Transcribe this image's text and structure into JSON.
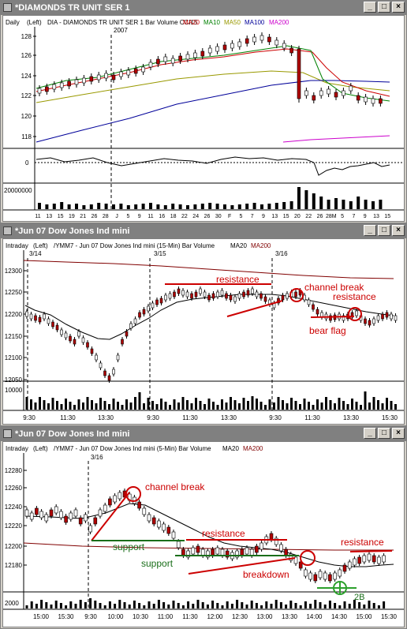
{
  "windows": [
    {
      "title": "*DIAMONDS TR UNIT SER 1",
      "interval": "Daily",
      "scale": "(Left)",
      "symbol_line": "DIA - DIAMONDS TR UNIT SER 1  Bar  Volume  CCI15",
      "indicators": [
        {
          "label": "MA20",
          "color": "#cc0000"
        },
        {
          "label": "MA10",
          "color": "#008000"
        },
        {
          "label": "MA50",
          "color": "#999900"
        },
        {
          "label": "MA100",
          "color": "#000099"
        },
        {
          "label": "MA200",
          "color": "#cc00cc"
        }
      ],
      "year_label": "2007",
      "price_ticks": [
        "128",
        "126",
        "124",
        "122",
        "120",
        "118"
      ],
      "cci_tick": "0",
      "volume_tick": "20000000",
      "date_ticks": [
        "11",
        "13",
        "15",
        "19",
        "21",
        "26",
        "28",
        "J",
        "5",
        "9",
        "11",
        "16",
        "18",
        "22",
        "24",
        "26",
        "30",
        "F",
        "5",
        "7",
        "9",
        "13",
        "15",
        "20",
        "22",
        "26",
        "28M",
        "5",
        "7",
        "9",
        "13",
        "15"
      ]
    },
    {
      "title": "*Jun 07  Dow Jones Ind mini",
      "interval": "Intraday",
      "scale": "(Left)",
      "symbol_line": "/YMM7 - Jun 07  Dow Jones Ind mini (15-Min)  Bar  Volume",
      "indicators": [
        {
          "label": "MA20",
          "color": "#000000"
        },
        {
          "label": "MA200",
          "color": "#800000"
        }
      ],
      "date_labels": [
        "3/14",
        "3/15",
        "3/16"
      ],
      "price_ticks": [
        "12300",
        "12250",
        "12200",
        "12150",
        "12100",
        "12050"
      ],
      "volume_tick": "10000",
      "time_ticks": [
        "9:30",
        "11:30",
        "13:30",
        "9:30",
        "11:30",
        "13:30",
        "9:30",
        "11:30",
        "13:30",
        "15:30"
      ],
      "annotations": [
        "resistance",
        "channel break",
        "resistance",
        "bear flag"
      ]
    },
    {
      "title": "*Jun 07  Dow Jones Ind mini",
      "interval": "Intraday",
      "scale": "(Left)",
      "symbol_line": "/YMM7 - Jun 07  Dow Jones Ind mini (5-Min)  Bar  Volume",
      "indicators": [
        {
          "label": "MA20",
          "color": "#000000"
        },
        {
          "label": "MA200",
          "color": "#800000"
        }
      ],
      "date_labels": [
        "3/16"
      ],
      "price_ticks": [
        "12280",
        "12260",
        "12240",
        "12220",
        "12200",
        "12180"
      ],
      "volume_tick": "2000",
      "time_ticks": [
        "15:00",
        "15:30",
        "9:30",
        "10:00",
        "10:30",
        "11:00",
        "11:30",
        "12:00",
        "12:30",
        "13:00",
        "13:30",
        "14:00",
        "14:30",
        "15:00",
        "15:30"
      ],
      "annotations": [
        "channel break",
        "resistance",
        "support",
        "support",
        "breakdown",
        "resistance",
        "2B"
      ]
    }
  ],
  "window_buttons": {
    "minimize": "_",
    "maximize": "□",
    "close": "×"
  },
  "colors": {
    "up_bar": "#ffffff",
    "down_bar": "#b00000",
    "annotation_red": "#cc0000",
    "annotation_green": "#1a6e1a"
  }
}
